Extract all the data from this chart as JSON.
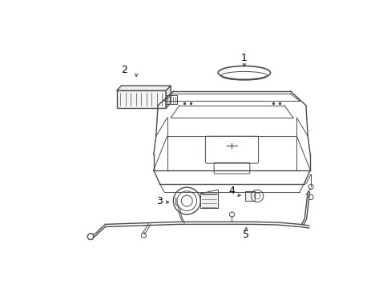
{
  "bg_color": "#ffffff",
  "line_color": "#4a4a4a",
  "label_color": "#000000",
  "fig_width": 4.89,
  "fig_height": 3.6,
  "dpi": 100
}
